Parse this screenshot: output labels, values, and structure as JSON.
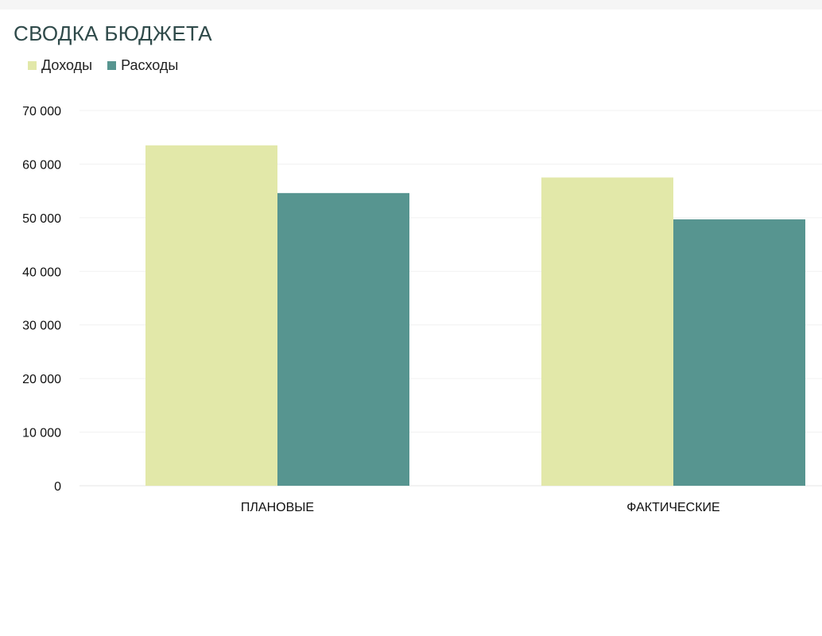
{
  "chart_data": {
    "type": "bar",
    "title": "СВОДКА БЮДЖЕТА",
    "categories": [
      "ПЛАНОВЫЕ",
      "ФАКТИЧЕСКИЕ"
    ],
    "series": [
      {
        "name": "Доходы",
        "values": [
          63500,
          57500
        ],
        "color": "#e2e8a9"
      },
      {
        "name": "Расходы",
        "values": [
          54600,
          49700
        ],
        "color": "#579590"
      }
    ],
    "ylim": [
      0,
      70000
    ],
    "yticks": [
      0,
      10000,
      20000,
      30000,
      40000,
      50000,
      60000,
      70000
    ],
    "ytick_labels": [
      "0",
      "10 000",
      "20 000",
      "30 000",
      "40 000",
      "50 000",
      "60 000",
      "70 000"
    ],
    "grid": true,
    "legend": "top-left",
    "xlabel": "",
    "ylabel": ""
  }
}
